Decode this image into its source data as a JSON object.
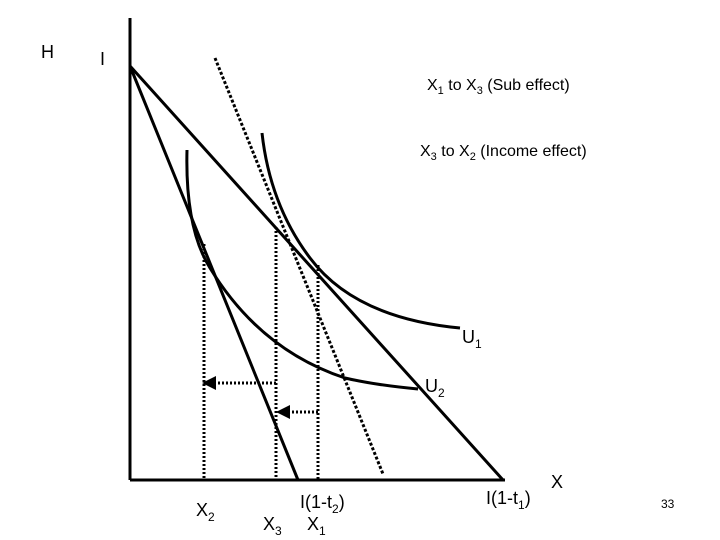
{
  "slide": {
    "page_number": "33"
  },
  "axes": {
    "y_label": "H",
    "x_label": "X",
    "intercept_label": "I"
  },
  "annotations": {
    "sub_effect": {
      "a": "X",
      "a_sub": "1",
      "mid": " to X",
      "b_sub": "3",
      "tail": " (Sub effect)"
    },
    "income_effect": {
      "a": "X",
      "a_sub": "3",
      "mid": " to X",
      "b_sub": "2",
      "tail": " (Income effect)"
    }
  },
  "budget_lines": {
    "t1_label": {
      "main": "I(1-t",
      "sub": "1",
      "close": ")"
    },
    "t2_label": {
      "main": "I(1-t",
      "sub": "2",
      "close": ")"
    }
  },
  "curves": {
    "u1": {
      "main": "U",
      "sub": "1"
    },
    "u2": {
      "main": "U",
      "sub": "2"
    }
  },
  "x_markers": {
    "x2": {
      "main": "X",
      "sub": "2"
    },
    "x3": {
      "main": "X",
      "sub": "3"
    },
    "x1": {
      "main": "X",
      "sub": "1"
    }
  }
}
